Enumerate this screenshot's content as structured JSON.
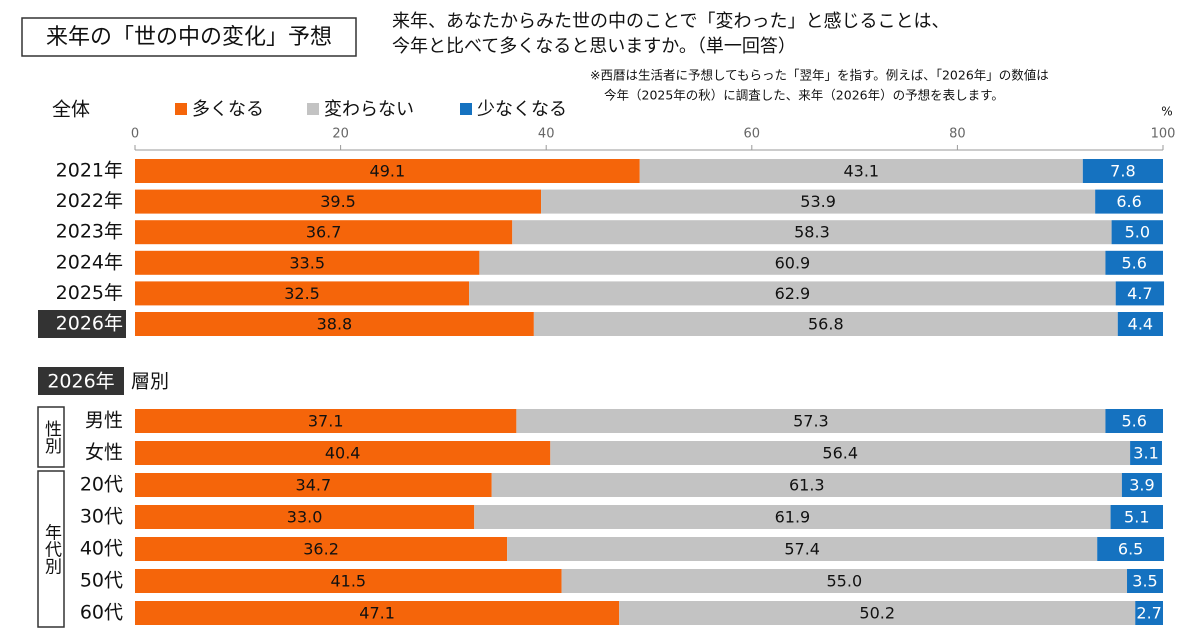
{
  "header": {
    "title": "来年の「世の中の変化」予想",
    "subtitle": [
      "来年、あなたからみた世の中のことで「変わった」と感じることは、",
      "今年と比べて多くなると思いますか。（単一回答）"
    ],
    "note": [
      "※西暦は生活者に予想してもらった「翌年」を指す。例えば、「2026年」の数値は",
      "今年（2025年の秋）に調査した、来年（2026年）の予想を表します。"
    ]
  },
  "chart_data": [
    {
      "type": "stacked-bar-horizontal",
      "title": "全体",
      "x_unit": "%",
      "xlim": [
        0,
        100
      ],
      "xticks": [
        0,
        20,
        40,
        60,
        80,
        100
      ],
      "categories": [
        "2021年",
        "2022年",
        "2023年",
        "2024年",
        "2025年",
        "2026年"
      ],
      "series": [
        {
          "name": "多くなる",
          "color": "#f5650a",
          "values": [
            49.1,
            39.5,
            36.7,
            33.5,
            32.5,
            38.8
          ],
          "value_labels": [
            "49.1",
            "39.5",
            "36.7",
            "33.5",
            "32.5",
            "38.8"
          ]
        },
        {
          "name": "変わらない",
          "color": "#c3c3c3",
          "values": [
            43.1,
            53.9,
            58.3,
            60.9,
            62.9,
            56.8
          ],
          "value_labels": [
            "43.1",
            "53.9",
            "58.3",
            "60.9",
            "62.9",
            "56.8"
          ]
        },
        {
          "name": "少なくなる",
          "color": "#1572c0",
          "values": [
            7.8,
            6.6,
            5.0,
            5.6,
            4.7,
            4.4
          ],
          "value_labels": [
            "7.8",
            "6.6",
            "5.0",
            "5.6",
            "4.7",
            "4.4"
          ]
        }
      ]
    },
    {
      "type": "stacked-bar-horizontal",
      "badge": "2026年",
      "title": "層別",
      "xlim": [
        0,
        100
      ],
      "category_groups": [
        {
          "label": "性別",
          "categories": [
            "男性",
            "女性"
          ]
        },
        {
          "label": "年代別",
          "categories": [
            "20代",
            "30代",
            "40代",
            "50代",
            "60代"
          ]
        }
      ],
      "series": [
        {
          "name": "多くなる",
          "color": "#f5650a",
          "values": [
            37.1,
            40.4,
            34.7,
            33.0,
            36.2,
            41.5,
            47.1
          ],
          "value_labels": [
            "37.1",
            "40.4",
            "34.7",
            "33.0",
            "36.2",
            "41.5",
            "47.1"
          ]
        },
        {
          "name": "変わらない",
          "color": "#c3c3c3",
          "values": [
            57.3,
            56.4,
            61.3,
            61.9,
            57.4,
            55.0,
            50.2
          ],
          "value_labels": [
            "57.3",
            "56.4",
            "61.3",
            "61.9",
            "57.4",
            "55.0",
            "50.2"
          ]
        },
        {
          "name": "少なくなる",
          "color": "#1572c0",
          "values": [
            5.6,
            3.1,
            3.9,
            5.1,
            6.5,
            3.5,
            2.7
          ],
          "value_labels": [
            "5.6",
            "3.1",
            "3.9",
            "5.1",
            "6.5",
            "3.5",
            "2.7"
          ]
        }
      ]
    }
  ]
}
